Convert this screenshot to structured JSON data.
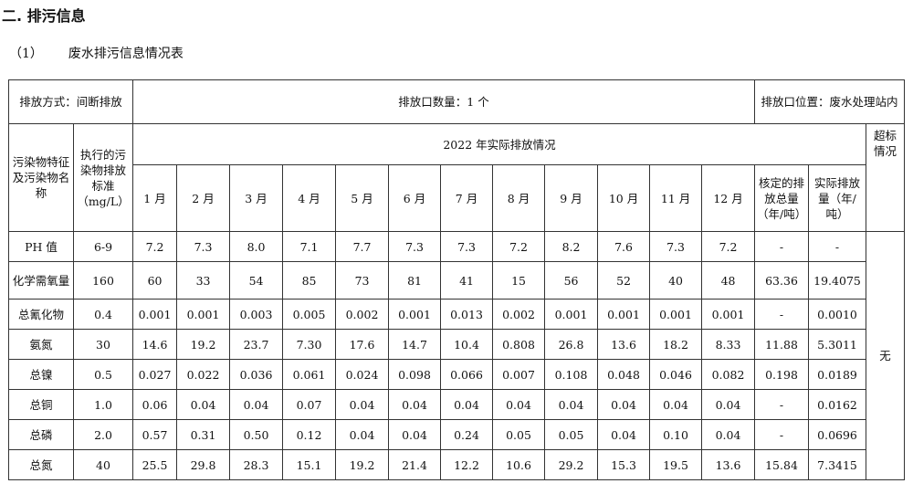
{
  "section_title": "二. 排污信息",
  "subsection": {
    "index": "（1）",
    "title": "废水排污信息情况表"
  },
  "table": {
    "discharge_mode": "排放方式：间断排放",
    "outlet_count": "排放口数量：1 个",
    "outlet_location": "排放口位置：废水处理站内",
    "col_pollutant": "污染物特征及污染物名称",
    "col_standard": "执行的污染物排放标准（mg/L）",
    "year_header": "2022 年实际排放情况",
    "col_exceed": "超标情况",
    "months": [
      "1 月",
      "2 月",
      "3 月",
      "4 月",
      "5 月",
      "6 月",
      "7 月",
      "8 月",
      "9 月",
      "10 月",
      "11 月",
      "12 月"
    ],
    "col_approved": "核定的排放总量（年/吨）",
    "col_actual": "实际排放量（年/吨）",
    "exceed_value": "无",
    "rows": [
      {
        "name": "PH 值",
        "standard": "6-9",
        "values": [
          "7.2",
          "7.3",
          "8.0",
          "7.1",
          "7.7",
          "7.3",
          "7.3",
          "7.2",
          "8.2",
          "7.6",
          "7.3",
          "7.2"
        ],
        "approved": "-",
        "actual": "-"
      },
      {
        "name": "化学需氧量",
        "standard": "160",
        "values": [
          "60",
          "33",
          "54",
          "85",
          "73",
          "81",
          "41",
          "15",
          "56",
          "52",
          "40",
          "48"
        ],
        "approved": "63.36",
        "actual": "19.4075"
      },
      {
        "name": "总氰化物",
        "standard": "0.4",
        "values": [
          "0.001",
          "0.001",
          "0.003",
          "0.005",
          "0.002",
          "0.001",
          "0.013",
          "0.002",
          "0.001",
          "0.001",
          "0.001",
          "0.001"
        ],
        "approved": "-",
        "actual": "0.0010"
      },
      {
        "name": "氨氮",
        "standard": "30",
        "values": [
          "14.6",
          "19.2",
          "23.7",
          "7.30",
          "17.6",
          "14.7",
          "10.4",
          "0.808",
          "26.8",
          "13.6",
          "18.2",
          "8.33"
        ],
        "approved": "11.88",
        "actual": "5.3011"
      },
      {
        "name": "总镍",
        "standard": "0.5",
        "values": [
          "0.027",
          "0.022",
          "0.036",
          "0.061",
          "0.024",
          "0.098",
          "0.066",
          "0.007",
          "0.108",
          "0.048",
          "0.046",
          "0.082"
        ],
        "approved": "0.198",
        "actual": "0.0189"
      },
      {
        "name": "总铜",
        "standard": "1.0",
        "values": [
          "0.06",
          "0.04",
          "0.04",
          "0.07",
          "0.04",
          "0.04",
          "0.04",
          "0.04",
          "0.04",
          "0.04",
          "0.04",
          "0.04"
        ],
        "approved": "-",
        "actual": "0.0162"
      },
      {
        "name": "总磷",
        "standard": "2.0",
        "values": [
          "0.57",
          "0.31",
          "0.50",
          "0.12",
          "0.04",
          "0.04",
          "0.24",
          "0.05",
          "0.05",
          "0.04",
          "0.10",
          "0.04"
        ],
        "approved": "-",
        "actual": "0.0696"
      },
      {
        "name": "总氮",
        "standard": "40",
        "values": [
          "25.5",
          "29.8",
          "28.3",
          "15.1",
          "19.2",
          "21.4",
          "12.2",
          "10.6",
          "29.2",
          "15.3",
          "19.5",
          "13.6"
        ],
        "approved": "15.84",
        "actual": "7.3415"
      }
    ]
  }
}
